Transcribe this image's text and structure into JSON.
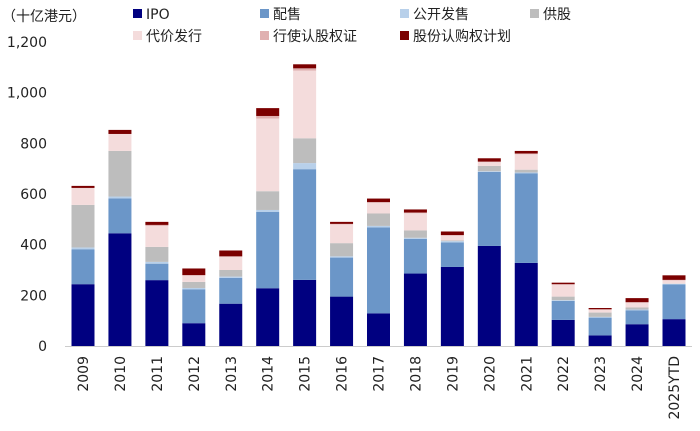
{
  "chart_data": {
    "type": "bar",
    "stacked": true,
    "unit_label": "（十亿港元）",
    "ylim": [
      0,
      1200
    ],
    "yticks": [
      "0",
      "200",
      "400",
      "600",
      "800",
      "1,000",
      "1,200"
    ],
    "ytick_values": [
      0,
      200,
      400,
      600,
      800,
      1000,
      1200
    ],
    "grid": false,
    "legend_position": "top",
    "categories": [
      "2009",
      "2010",
      "2011",
      "2012",
      "2013",
      "2014",
      "2015",
      "2016",
      "2017",
      "2018",
      "2019",
      "2020",
      "2021",
      "2022",
      "2023",
      "2024",
      "2025YTD"
    ],
    "series": [
      {
        "name": "IPO",
        "color": "#000080",
        "values": [
          244,
          445,
          260,
          90,
          167,
          228,
          261,
          195,
          129,
          286,
          312,
          395,
          328,
          103,
          42,
          86,
          106
        ]
      },
      {
        "name": "配售",
        "color": "#6b96c8",
        "values": [
          138,
          138,
          65,
          134,
          102,
          301,
          437,
          154,
          339,
          137,
          97,
          292,
          354,
          75,
          70,
          55,
          137
        ]
      },
      {
        "name": "公开发售",
        "color": "#b8d0ea",
        "values": [
          7,
          7,
          7,
          5,
          5,
          8,
          24,
          5,
          6,
          4,
          5,
          3,
          3,
          3,
          3,
          3,
          3
        ]
      },
      {
        "name": "供股",
        "color": "#bdbdbd",
        "values": [
          168,
          180,
          59,
          24,
          26,
          74,
          98,
          52,
          49,
          29,
          3,
          21,
          11,
          14,
          17,
          8,
          0
        ]
      },
      {
        "name": "代价发行",
        "color": "#f4dcdc",
        "values": [
          66,
          67,
          83,
          25,
          52,
          287,
          267,
          74,
          43,
          68,
          19,
          15,
          61,
          47,
          11,
          19,
          13
        ]
      },
      {
        "name": "行使认股权证",
        "color": "#e0b0b0",
        "values": [
          1,
          0,
          4,
          2,
          2,
          10,
          9,
          2,
          2,
          3,
          2,
          2,
          3,
          2,
          2,
          2,
          2
        ]
      },
      {
        "name": "股份认购权计划",
        "color": "#7b0000",
        "values": [
          8,
          16,
          12,
          26,
          23,
          31,
          16,
          8,
          14,
          12,
          14,
          13,
          10,
          6,
          5,
          16,
          18
        ]
      }
    ]
  }
}
